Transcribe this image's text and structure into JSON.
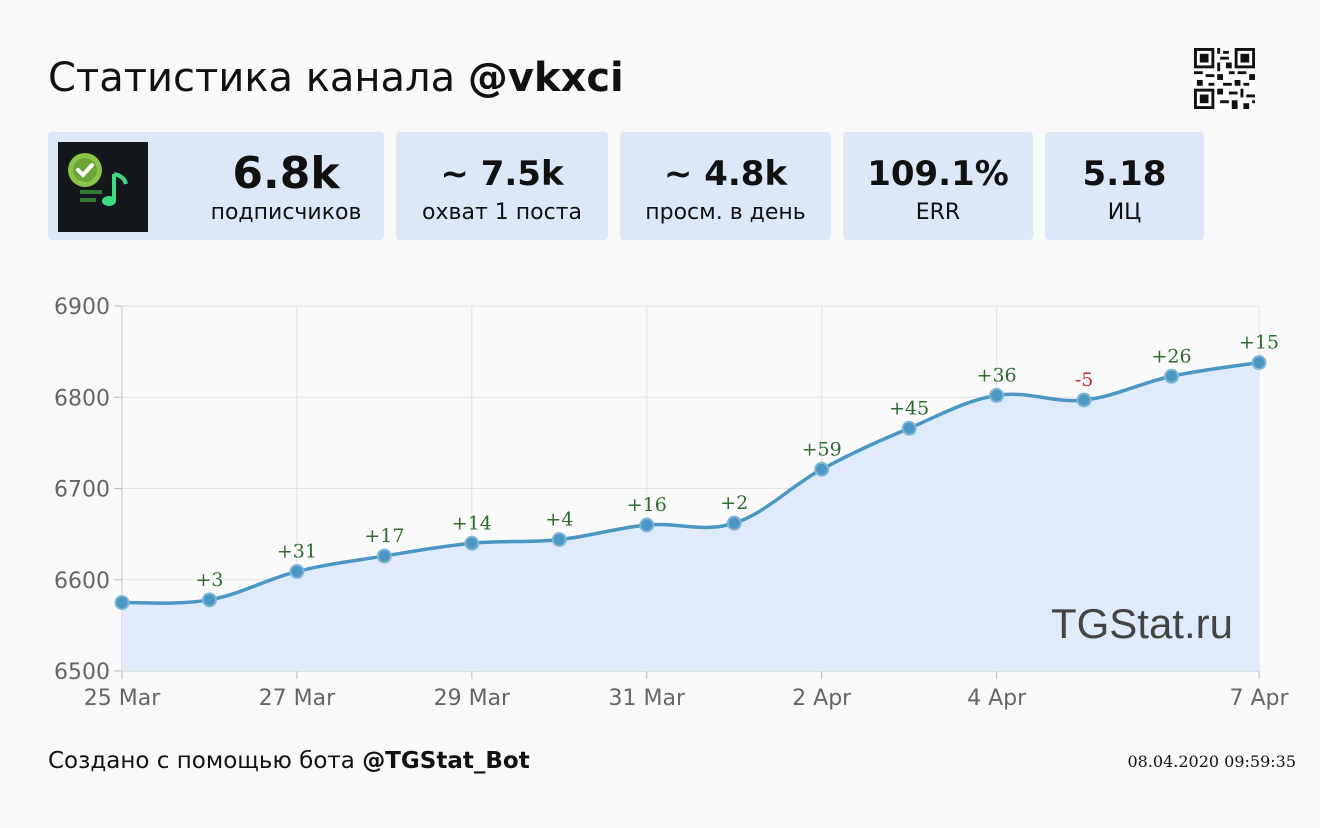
{
  "header": {
    "title_prefix": "Статистика канала",
    "channel": "@vkxci"
  },
  "stats": [
    {
      "value": "6.8k",
      "label": "подписчиков"
    },
    {
      "value": "~ 7.5k",
      "label": "охват 1 поста"
    },
    {
      "value": "~ 4.8k",
      "label": "просм. в день"
    },
    {
      "value": "109.1%",
      "label": "ERR"
    },
    {
      "value": "5.18",
      "label": "ИЦ"
    }
  ],
  "chart_data": {
    "type": "line",
    "x": [
      "25 Mar",
      "26 Mar",
      "27 Mar",
      "28 Mar",
      "29 Mar",
      "30 Mar",
      "31 Mar",
      "1 Apr",
      "2 Apr",
      "3 Apr",
      "4 Apr",
      "5 Apr",
      "6 Apr",
      "7 Apr"
    ],
    "values": [
      6575,
      6578,
      6609,
      6626,
      6640,
      6644,
      6660,
      6662,
      6721,
      6766,
      6802,
      6797,
      6823,
      6838
    ],
    "point_labels": [
      "",
      "+3",
      "+31",
      "+17",
      "+14",
      "+4",
      "+16",
      "+2",
      "+59",
      "+45",
      "+36",
      "-5",
      "+26",
      "+15"
    ],
    "x_tick_labels": [
      "25 Mar",
      "",
      "27 Mar",
      "",
      "29 Mar",
      "",
      "31 Mar",
      "",
      "2 Apr",
      "",
      "4 Apr",
      "",
      "",
      "7 Apr"
    ],
    "y_ticks": [
      6500,
      6600,
      6700,
      6800,
      6900
    ],
    "ylim": [
      6500,
      6900
    ],
    "grid": true,
    "colors": {
      "line": "#4b97c4",
      "fill": "#dfeafa",
      "positive": "#2e6b2e",
      "negative": "#c62828"
    },
    "watermark": "TGStat.ru"
  },
  "footer": {
    "prefix": "Создано с помощью бота",
    "bot": "@TGStat_Bot",
    "timestamp": "08.04.2020 09:59:35"
  }
}
